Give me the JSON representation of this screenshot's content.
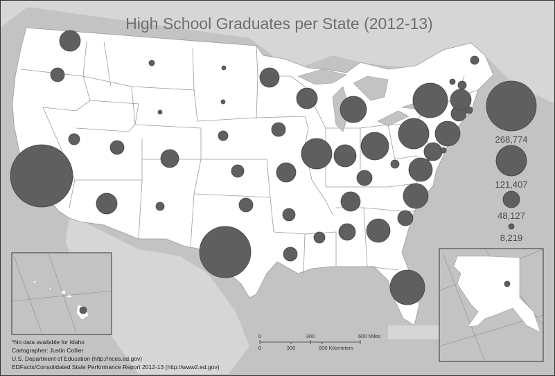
{
  "title": "High School Graduates per State (2012-13)",
  "legend": {
    "values": [
      "268,774",
      "121,407",
      "48,127",
      "8,219"
    ]
  },
  "credits": [
    "*No data available for Idaho",
    "Cartographer: Justin Collier",
    "U.S. Department of Education (http://nces.ed.gov)",
    "EDFacts/Consolidated State Performance Report 2012-13 (http://www2.ed.gov)"
  ],
  "scale_bar": {
    "miles_ticks": [
      "0",
      "300",
      "600 Miles"
    ],
    "km_ticks": [
      "0",
      "300",
      "600 Kilometers"
    ]
  },
  "colors": {
    "land": "#ffffff",
    "background_land": "#d4d4d4",
    "water": "#bdbdbd",
    "symbol_fill": "#5f5f5f",
    "symbol_stroke": "#444444"
  }
}
